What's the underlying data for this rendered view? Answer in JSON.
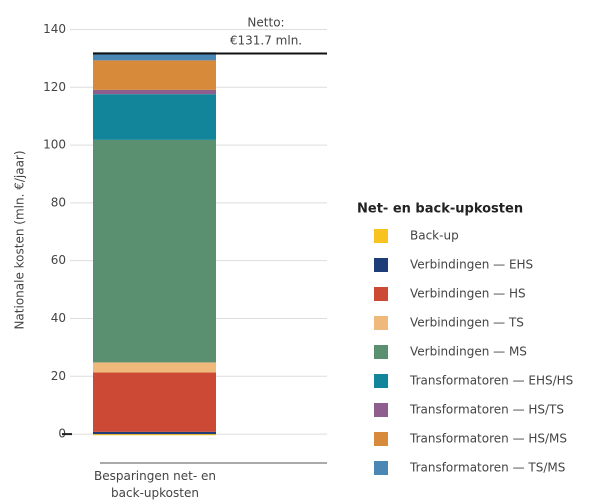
{
  "chart_data": {
    "type": "stacked_bar",
    "y_label": "Nationale kosten (mln. €/jaar)",
    "categories": [
      "Besparingen net- en back-upkosten"
    ],
    "ylim": [
      -10,
      145
    ],
    "yticks": [
      0,
      20,
      40,
      60,
      80,
      100,
      120,
      140
    ],
    "grid": true,
    "legend_title": "Net- en back-upkosten",
    "netto": 131.7,
    "annotation": [
      "Netto:",
      "€131.7 mln."
    ],
    "series": [
      {
        "name": "Back-up",
        "color": "#f9c31f",
        "values": [
          -0.4
        ]
      },
      {
        "name": "Verbindingen — EHS",
        "color": "#1d3c78",
        "values": [
          0.8
        ]
      },
      {
        "name": "Verbindingen — HS",
        "color": "#cc4a35",
        "values": [
          20.5
        ]
      },
      {
        "name": "Verbindingen — TS",
        "color": "#efb97c",
        "values": [
          3.5
        ]
      },
      {
        "name": "Verbindingen — MS",
        "color": "#5a8f6f",
        "values": [
          77
        ]
      },
      {
        "name": "Transformatoren — EHS/HS",
        "color": "#12859a",
        "values": [
          15.8
        ]
      },
      {
        "name": "Transformatoren — HS/TS",
        "color": "#8e5f8e",
        "values": [
          1.5
        ]
      },
      {
        "name": "Transformatoren — HS/MS",
        "color": "#d68a3a",
        "values": [
          10.2
        ]
      },
      {
        "name": "Transformatoren — TS/MS",
        "color": "#4a87b5",
        "values": [
          2.8
        ]
      }
    ]
  }
}
